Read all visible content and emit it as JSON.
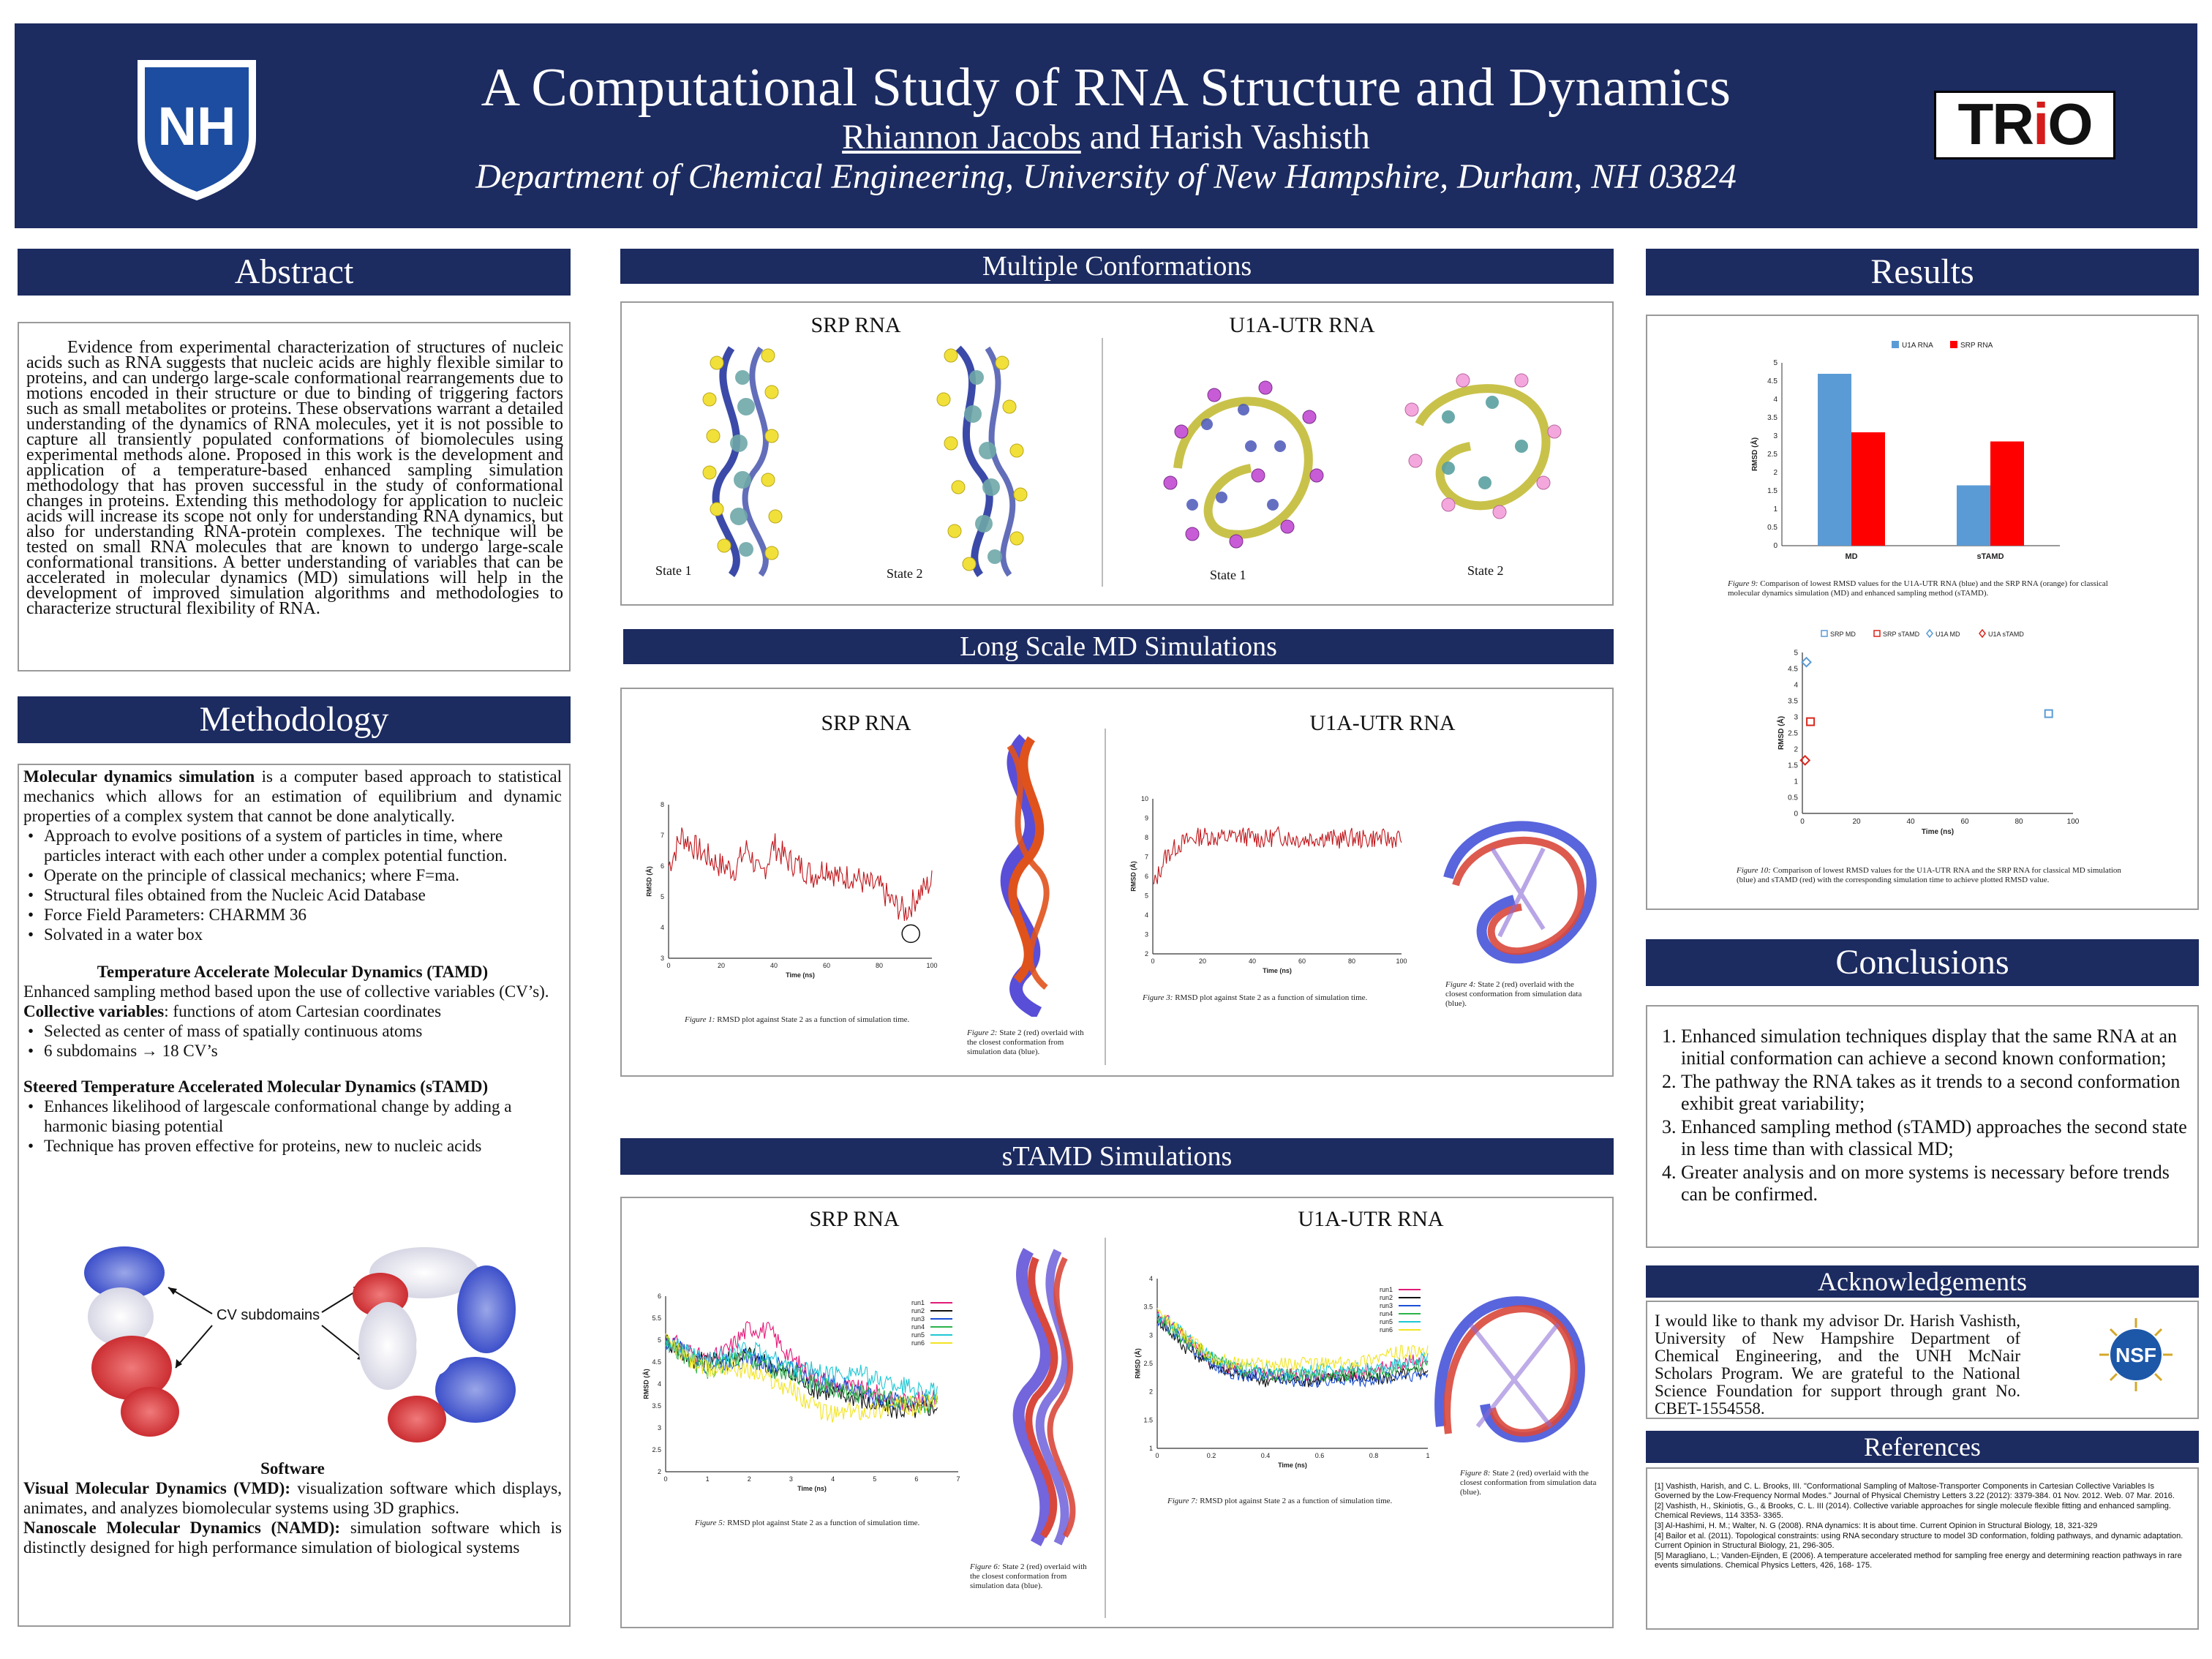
{
  "header": {
    "title": "A Computational Study of RNA Structure and Dynamics",
    "author_primary": "Rhiannon Jacobs",
    "author_rest": " and Harish Vashisth",
    "department": "Department of Chemical Engineering, University of New Hampshire, Durham, NH 03824",
    "logo_left": "NH",
    "logo_right_a": "TR",
    "logo_right_i": "i",
    "logo_right_o": "O"
  },
  "abstract": {
    "heading": "Abstract",
    "text": "Evidence from experimental characterization of structures of nucleic acids such as RNA suggests that nucleic acids are highly flexible similar to proteins, and can undergo large-scale conformational rearrangements due to motions encoded in their structure or due to binding of triggering factors such as small metabolites or proteins. These observations warrant a detailed understanding of the dynamics of RNA molecules, yet it is not possible to capture all transiently populated conformations of biomolecules using experimental methods alone. Proposed in this work is the development and application of a temperature-based enhanced sampling simulation methodology that has proven successful in the study of conformational changes in proteins. Extending this methodology for application to nucleic acids will increase its scope not only for understanding RNA dynamics, but also for understanding RNA-protein complexes. The technique will be tested on small RNA molecules that are known to undergo large-scale conformational transitions. A better understanding of variables that can be accelerated in molecular dynamics (MD) simulations will help in the development of improved simulation algorithms and methodologies to characterize structural flexibility of RNA."
  },
  "methodology": {
    "heading": "Methodology",
    "md_bold": "Molecular dynamics simulation",
    "md_text": " is a computer based approach to statistical mechanics which allows for an estimation of equilibrium and dynamic properties of a complex system  that cannot be done analytically.",
    "md_bullets": [
      "Approach to evolve positions of a system of particles  in time, where particles interact with each other under a complex potential function.",
      "Operate on the principle of classical mechanics; where F=ma.",
      "Structural files obtained from the Nucleic Acid Database",
      "Force Field Parameters: CHARMM 36",
      "Solvated in a water box"
    ],
    "tamd_title": "Temperature Accelerate Molecular Dynamics (TAMD)",
    "tamd_text": "Enhanced sampling method based upon the use of collective variables (CV’s).",
    "cv_bold": "Collective variables",
    "cv_text": ": functions of atom Cartesian coordinates",
    "cv_bullets": [
      "Selected as center of mass of spatially continuous atoms",
      "6 subdomains → 18 CV’s"
    ],
    "stamd_title": "Steered Temperature Accelerated Molecular Dynamics (sTAMD)",
    "stamd_bullets": [
      "Enhances likelihood of  largescale conformational change by adding a harmonic biasing potential",
      "Technique has proven effective for proteins, new to nucleic acids"
    ],
    "cv_label": "CV subdomains",
    "software_title": "Software",
    "vmd_bold": "Visual Molecular Dynamics (VMD):",
    "vmd_text": " visualization software which displays, animates, and analyzes biomolecular systems using 3D graphics.",
    "namd_bold": "Nanoscale Molecular Dynamics (NAMD):",
    "namd_text": " simulation software which is distinctly designed for high performance simulation of biological systems"
  },
  "multiple_conformations": {
    "heading": "Multiple Conformations",
    "left_title": "SRP RNA",
    "right_title": "U1A-UTR RNA",
    "state1": "State 1",
    "state2": "State 2"
  },
  "long_md": {
    "heading": "Long Scale MD Simulations",
    "left_title": "SRP RNA",
    "right_title": "U1A-UTR RNA",
    "fig1_num": "Figure 1:",
    "fig1": " RMSD plot against State 2 as a function of simulation time.",
    "fig2_num": "Figure 2:",
    "fig2": " State 2 (red) overlaid with the closest conformation from simulation data (blue).",
    "fig3_num": "Figure 3:",
    "fig3": " RMSD plot against State 2 as a function of simulation time.",
    "fig4_num": "Figure 4:",
    "fig4": " State 2 (red) overlaid with the closest conformation from simulation data (blue)."
  },
  "stamd": {
    "heading": "sTAMD Simulations",
    "left_title": "SRP RNA",
    "right_title": "U1A-UTR RNA",
    "fig5_num": "Figure 5:",
    "fig5": " RMSD plot against State 2 as a function of simulation time.",
    "fig6_num": "Figure 6:",
    "fig6": " State 2 (red) overlaid with the closest conformation from simulation data (blue).",
    "fig7_num": "Figure 7:",
    "fig7": " RMSD plot against State 2 as a function of simulation time.",
    "fig8_num": "Figure 8:",
    "fig8": " State 2 (red) overlaid with the closest conformation from simulation data (blue).",
    "runs": [
      "run1",
      "run2",
      "run3",
      "run4",
      "run5",
      "run6"
    ]
  },
  "results": {
    "heading": "Results",
    "fig9_num": "Figure 9:",
    "fig9": " Comparison of lowest RMSD values for the U1A-UTR RNA (blue) and the SRP RNA (orange) for classical molecular dynamics simulation (MD) and enhanced sampling method (sTAMD).",
    "fig10_num": "Figure 10:",
    "fig10": " Comparison of lowest RMSD values for the U1A-UTR RNA and the SRP RNA  for classical MD simulation (blue) and sTAMD (red) with the corresponding simulation time to achieve plotted RMSD value."
  },
  "conclusions": {
    "heading": "Conclusions",
    "items": [
      "Enhanced simulation techniques display that the same RNA at an initial conformation can achieve a second known conformation;",
      " The pathway the RNA takes as it trends to a second conformation exhibit great variability;",
      "Enhanced sampling method (sTAMD) approaches the second state in less time than with classical MD;",
      "Greater analysis and on more systems is necessary before trends can be confirmed."
    ]
  },
  "acknowledgements": {
    "heading": "Acknowledgements",
    "text": "I would like to thank my advisor Dr. Harish Vashisth, University of New Hampshire Department of Chemical Engineering, and the UNH McNair Scholars Program. We are grateful to the National Science Foundation for support through grant No. CBET-1554558.",
    "nsf": "NSF"
  },
  "references": {
    "heading": "References",
    "items": [
      "[1] Vashisth, Harish, and C. L. Brooks, III. \"Conformational Sampling of Maltose-Transporter Components in Cartesian Collective Variables Is Governed by the Low-Frequency Normal Modes.\" Journal of Physical Chemistry Letters 3.22 (2012): 3379-384. 01 Nov. 2012. Web. 07 Mar. 2016.",
      "[2] Vashisth, H., Skiniotis, G., & Brooks, C. L. III (2014). Collective variable approaches for single molecule flexible fitting and enhanced sampling. Chemical Reviews, 114 3353- 3365.",
      "[3] Al-Hashimi, H. M.; Walter, N. G (2008). RNA dynamics: It is about time. Current Opinion in Structural Biology, 18, 321-329",
      "[4] Bailor et al. (2011). Topological constraints: using RNA secondary structure to model 3D conformation, folding pathways, and dynamic adaptation. Current Opinion in Structural Biology, 21, 296-305.",
      "[5] Maragliano, L.; Vanden-Eijnden, E (2006). A temperature accelerated method for sampling free energy and determining reaction pathways in rare events simulations. Chemical Physics Letters, 426, 168- 175."
    ]
  },
  "chart_data": [
    {
      "id": "fig1",
      "type": "line",
      "xlabel": "Time (ns)",
      "ylabel": "RMSD (Å)",
      "xlim": [
        0,
        100
      ],
      "ylim": [
        3,
        8
      ],
      "xticks": [
        0,
        20,
        40,
        60,
        80,
        100
      ],
      "yticks": [
        3,
        4,
        5,
        6,
        7,
        8
      ],
      "series": [
        {
          "x": [
            0,
            5,
            10,
            15,
            20,
            25,
            30,
            35,
            40,
            45,
            50,
            55,
            60,
            65,
            70,
            75,
            80,
            85,
            90,
            95,
            100
          ],
          "values": [
            6.0,
            7.0,
            6.6,
            6.3,
            6.0,
            5.9,
            6.6,
            5.6,
            6.7,
            6.2,
            6.0,
            5.7,
            6.0,
            5.6,
            5.7,
            5.4,
            5.3,
            4.8,
            4.5,
            5.1,
            5.5
          ]
        }
      ],
      "color": "#c0171c"
    },
    {
      "id": "fig3",
      "type": "line",
      "xlabel": "Time (ns)",
      "ylabel": "RMSD (Å)",
      "xlim": [
        0,
        100
      ],
      "ylim": [
        2,
        10
      ],
      "xticks": [
        0,
        20,
        40,
        60,
        80,
        100
      ],
      "yticks": [
        2,
        3,
        4,
        5,
        6,
        7,
        8,
        9,
        10
      ],
      "series": [
        {
          "x": [
            0,
            5,
            10,
            15,
            20,
            25,
            30,
            35,
            40,
            45,
            50,
            55,
            60,
            65,
            70,
            75,
            80,
            85,
            90,
            95,
            100
          ],
          "values": [
            5.4,
            7.0,
            7.6,
            7.9,
            8.1,
            8.0,
            8.0,
            8.1,
            8.0,
            7.9,
            8.1,
            8.0,
            7.9,
            8.0,
            8.0,
            7.9,
            8.0,
            7.9,
            8.0,
            7.9,
            8.0
          ]
        }
      ],
      "color": "#c0171c"
    },
    {
      "id": "fig5",
      "type": "line",
      "xlabel": "Time (ns)",
      "ylabel": "RMSD (Å)",
      "xlim": [
        0,
        7
      ],
      "ylim": [
        2,
        6
      ],
      "xticks": [
        0,
        1,
        2,
        3,
        4,
        5,
        6,
        7
      ],
      "yticks": [
        2,
        2.5,
        3,
        3.5,
        4,
        4.5,
        5,
        5.5,
        6
      ],
      "x": [
        0,
        0.5,
        1,
        1.5,
        2,
        2.5,
        3,
        3.5,
        4,
        4.5,
        5,
        5.5,
        6,
        6.5
      ],
      "series": [
        {
          "name": "run1",
          "color": "#e31a78",
          "values": [
            5.0,
            4.8,
            4.5,
            4.8,
            5.3,
            5.2,
            4.6,
            4.2,
            4.0,
            3.9,
            3.8,
            3.6,
            3.6,
            3.7
          ]
        },
        {
          "name": "run2",
          "color": "#111111",
          "values": [
            5.0,
            4.6,
            4.5,
            4.6,
            4.7,
            4.4,
            4.2,
            3.9,
            3.8,
            3.7,
            3.5,
            3.4,
            3.4,
            3.5
          ]
        },
        {
          "name": "run3",
          "color": "#1a4fd6",
          "values": [
            5.0,
            4.7,
            4.4,
            4.5,
            4.6,
            4.4,
            4.4,
            4.1,
            4.0,
            3.9,
            3.7,
            3.6,
            3.6,
            3.7
          ]
        },
        {
          "name": "run4",
          "color": "#2bb34a",
          "values": [
            5.0,
            4.6,
            4.3,
            4.5,
            4.6,
            4.3,
            4.3,
            4.0,
            3.9,
            3.8,
            3.7,
            3.6,
            3.5,
            3.6
          ]
        },
        {
          "name": "run5",
          "color": "#1fc7d4",
          "values": [
            5.0,
            4.7,
            4.5,
            4.7,
            4.8,
            4.6,
            4.4,
            4.3,
            4.2,
            4.3,
            4.1,
            4.0,
            3.9,
            3.8
          ]
        },
        {
          "name": "run6",
          "color": "#f2e422",
          "values": [
            5.0,
            4.6,
            4.3,
            4.4,
            4.3,
            4.1,
            3.9,
            3.5,
            3.3,
            3.4,
            3.4,
            3.5,
            3.5,
            3.6
          ]
        }
      ]
    },
    {
      "id": "fig7",
      "type": "line",
      "xlabel": "Time (ns)",
      "ylabel": "RMSD (Å)",
      "xlim": [
        0,
        1
      ],
      "ylim": [
        1,
        4
      ],
      "xticks": [
        0,
        0.2,
        0.4,
        0.6,
        0.8,
        1
      ],
      "yticks": [
        1,
        1.5,
        2,
        2.5,
        3,
        3.5,
        4
      ],
      "x": [
        0,
        0.1,
        0.2,
        0.3,
        0.4,
        0.5,
        0.6,
        0.7,
        0.8,
        0.9,
        1.0
      ],
      "series": [
        {
          "name": "run1",
          "color": "#e31a78",
          "values": [
            3.4,
            3.0,
            2.5,
            2.4,
            2.3,
            2.3,
            2.3,
            2.3,
            2.4,
            2.5,
            2.6
          ]
        },
        {
          "name": "run2",
          "color": "#111111",
          "values": [
            3.3,
            2.8,
            2.5,
            2.3,
            2.2,
            2.2,
            2.2,
            2.3,
            2.2,
            2.3,
            2.4
          ]
        },
        {
          "name": "run3",
          "color": "#1a4fd6",
          "values": [
            3.3,
            2.9,
            2.5,
            2.3,
            2.3,
            2.2,
            2.2,
            2.2,
            2.2,
            2.3,
            2.3
          ]
        },
        {
          "name": "run4",
          "color": "#2bb34a",
          "values": [
            3.3,
            2.9,
            2.6,
            2.4,
            2.3,
            2.3,
            2.3,
            2.3,
            2.3,
            2.4,
            2.5
          ]
        },
        {
          "name": "run5",
          "color": "#1fc7d4",
          "values": [
            3.4,
            3.0,
            2.6,
            2.4,
            2.4,
            2.3,
            2.4,
            2.4,
            2.4,
            2.5,
            2.6
          ]
        },
        {
          "name": "run6",
          "color": "#f2e422",
          "values": [
            3.4,
            3.0,
            2.6,
            2.5,
            2.5,
            2.5,
            2.5,
            2.5,
            2.6,
            2.7,
            2.7
          ]
        }
      ]
    },
    {
      "id": "fig9",
      "type": "bar",
      "categories": [
        "MD",
        "sTAMD"
      ],
      "ylabel": "RMSD (Å)",
      "ylim": [
        0,
        5
      ],
      "yticks": [
        0,
        0.5,
        1,
        1.5,
        2,
        2.5,
        3,
        3.5,
        4,
        4.5,
        5
      ],
      "series": [
        {
          "name": "U1A RNA",
          "color": "#5b9bd5",
          "values": [
            4.7,
            1.65
          ]
        },
        {
          "name": "SRP RNA",
          "color": "#ff0000",
          "values": [
            3.1,
            2.85
          ]
        }
      ],
      "legend": "top-center"
    },
    {
      "id": "fig10",
      "type": "scatter",
      "xlabel": "Time (ns)",
      "ylabel": "RMSD (Å)",
      "xlim": [
        0,
        100
      ],
      "ylim": [
        0,
        5
      ],
      "xticks": [
        0,
        20,
        40,
        60,
        80,
        100
      ],
      "yticks": [
        0,
        0.5,
        1,
        1.5,
        2,
        2.5,
        3,
        3.5,
        4,
        4.5,
        5
      ],
      "series": [
        {
          "name": "SRP MD",
          "color": "#5b9bd5",
          "marker": "square",
          "points": [
            [
              91,
              3.1
            ]
          ]
        },
        {
          "name": "SRP sTAMD",
          "color": "#d9261c",
          "marker": "square",
          "points": [
            [
              3,
              2.85
            ]
          ]
        },
        {
          "name": "U1A MD",
          "color": "#5b9bd5",
          "marker": "diamond",
          "points": [
            [
              1.5,
              4.7
            ]
          ]
        },
        {
          "name": "U1A sTAMD",
          "color": "#d9261c",
          "marker": "diamond",
          "points": [
            [
              1,
              1.65
            ]
          ]
        }
      ],
      "legend": "top-center"
    }
  ]
}
